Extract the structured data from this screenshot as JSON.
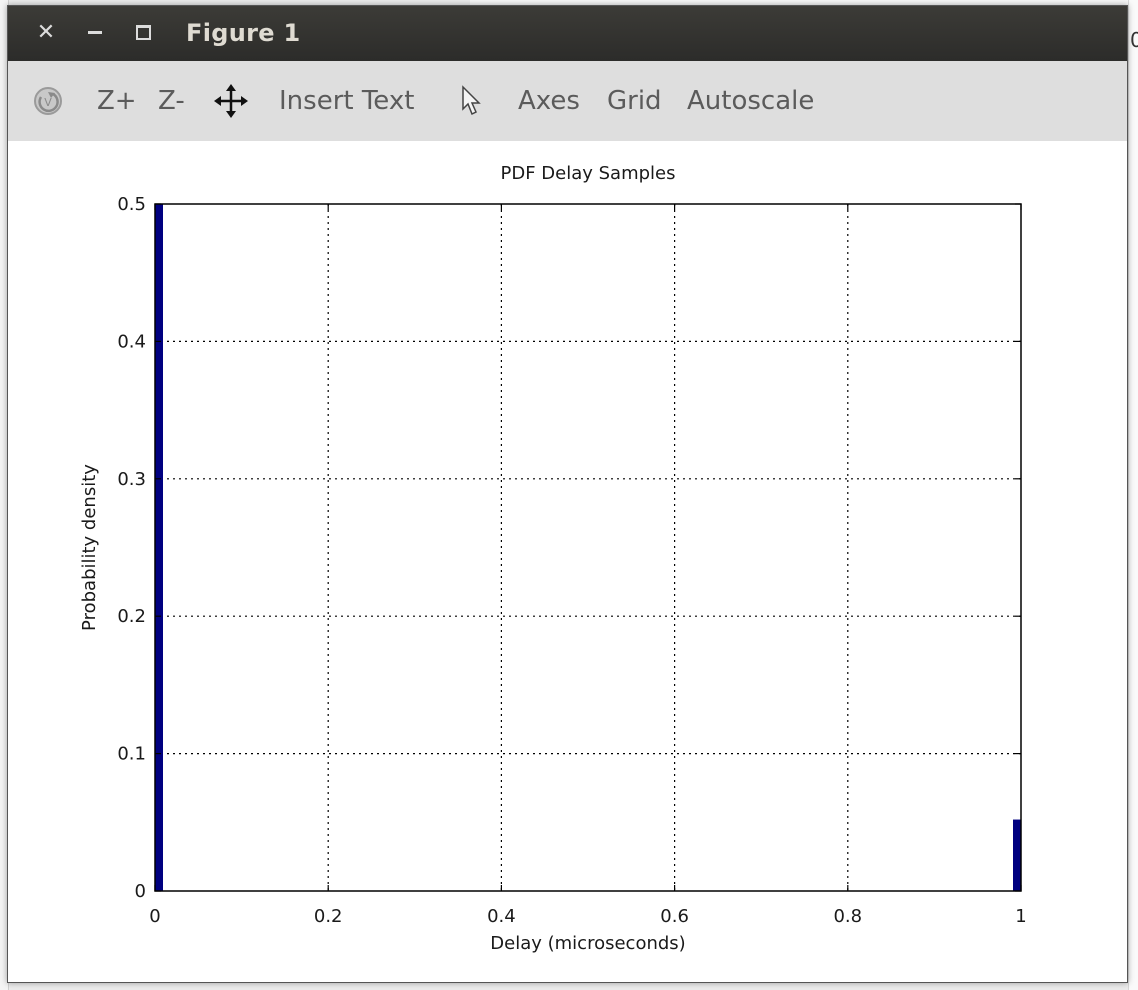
{
  "window": {
    "title": "Figure 1"
  },
  "toolbar": {
    "items": [
      {
        "name": "zoom-in-button",
        "label": "Z+"
      },
      {
        "name": "zoom-out-button",
        "label": "Z-"
      },
      {
        "name": "insert-text-button",
        "label": "Insert Text"
      },
      {
        "name": "axes-button",
        "label": "Axes"
      },
      {
        "name": "grid-button",
        "label": "Grid"
      },
      {
        "name": "autoscale-button",
        "label": "Autoscale"
      }
    ],
    "icons": {
      "rotate": "rotate-icon",
      "pan": "pan-move-icon",
      "select": "pointer-arrow-icon"
    }
  },
  "colors": {
    "bar": "#000080",
    "titlebar": "#2c2c2a",
    "toolbar": "#dedede"
  },
  "chart_data": {
    "type": "bar",
    "title": "PDF Delay Samples",
    "xlabel": "Delay (microseconds)",
    "ylabel": "Probability density",
    "xlim": [
      0,
      1
    ],
    "ylim": [
      0,
      0.5
    ],
    "xticks": [
      "0",
      "0.2",
      "0.4",
      "0.6",
      "0.8",
      "1"
    ],
    "yticks": [
      "0",
      "0.1",
      "0.2",
      "0.3",
      "0.4",
      "0.5"
    ],
    "grid": true,
    "bars": [
      {
        "x": 0.0,
        "value": 0.5
      },
      {
        "x": 1.0,
        "value": 0.052
      }
    ]
  }
}
